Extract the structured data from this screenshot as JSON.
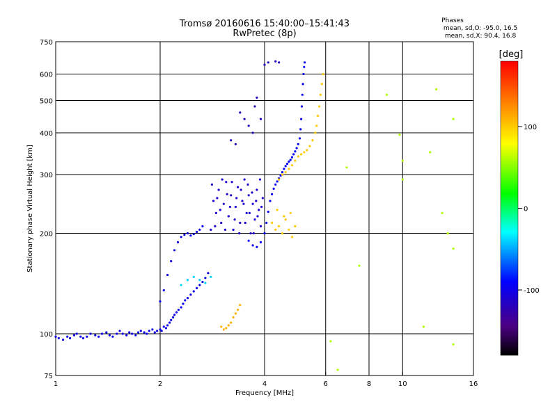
{
  "chart_data": {
    "type": "scatter",
    "title": "Tromsø 20160616 15:40:00–15:41:43",
    "subtitle": "RwPretec (8p)",
    "stats": {
      "heading": "Phases",
      "line_o": "mean, sd,O: -95.0, 16.5",
      "line_x": "mean, sd,X: 90.4, 16.8"
    },
    "xlabel": "Frequency [MHz]",
    "ylabel": "Stationary phase Virtual Height [km]",
    "xscale": "log",
    "yscale": "log",
    "xlim": [
      1,
      16
    ],
    "ylim": [
      75,
      750
    ],
    "x_ticks": [
      1,
      2,
      4,
      8,
      16
    ],
    "x_minor_ticks": [
      6,
      10
    ],
    "y_ticks": [
      75,
      100,
      200,
      300,
      400,
      500,
      600,
      750
    ],
    "grid_x": [
      2,
      4,
      6,
      8,
      10
    ],
    "grid_y": [
      100,
      200,
      300,
      400,
      500,
      600
    ],
    "colorbar": {
      "label": "[deg]",
      "range": [
        -180,
        180
      ],
      "ticks": [
        100,
        0,
        -100
      ]
    },
    "series": [
      {
        "id": "o_bottom",
        "phase": -100,
        "points": [
          [
            1.0,
            98
          ],
          [
            1.02,
            97
          ],
          [
            1.05,
            96
          ],
          [
            1.08,
            98
          ],
          [
            1.1,
            97
          ],
          [
            1.13,
            99
          ],
          [
            1.15,
            100
          ],
          [
            1.18,
            98
          ],
          [
            1.2,
            97
          ],
          [
            1.23,
            98
          ],
          [
            1.26,
            100
          ],
          [
            1.3,
            99
          ],
          [
            1.33,
            98
          ],
          [
            1.36,
            100
          ],
          [
            1.4,
            101
          ],
          [
            1.43,
            99
          ],
          [
            1.46,
            98
          ],
          [
            1.5,
            100
          ],
          [
            1.53,
            102
          ],
          [
            1.56,
            100
          ],
          [
            1.6,
            99
          ],
          [
            1.63,
            101
          ],
          [
            1.66,
            100
          ],
          [
            1.7,
            99
          ],
          [
            1.73,
            101
          ],
          [
            1.76,
            102
          ],
          [
            1.8,
            101
          ],
          [
            1.83,
            100
          ],
          [
            1.86,
            102
          ],
          [
            1.9,
            103
          ],
          [
            1.93,
            101
          ],
          [
            1.96,
            102
          ],
          [
            2.0,
            103
          ],
          [
            2.02,
            102
          ],
          [
            2.05,
            105
          ],
          [
            2.08,
            104
          ],
          [
            2.1,
            106
          ],
          [
            2.13,
            108
          ],
          [
            2.15,
            110
          ],
          [
            2.18,
            112
          ],
          [
            2.2,
            114
          ],
          [
            2.23,
            116
          ],
          [
            2.26,
            118
          ],
          [
            2.3,
            120
          ],
          [
            2.33,
            123
          ],
          [
            2.36,
            126
          ],
          [
            2.4,
            128
          ],
          [
            2.45,
            131
          ],
          [
            2.5,
            134
          ],
          [
            2.55,
            137
          ],
          [
            2.6,
            140
          ],
          [
            2.65,
            143
          ],
          [
            2.7,
            147
          ],
          [
            2.75,
            152
          ]
        ]
      },
      {
        "id": "o_low_branch",
        "phase": -100,
        "points": [
          [
            2.0,
            125
          ],
          [
            2.05,
            135
          ],
          [
            2.1,
            150
          ],
          [
            2.15,
            165
          ],
          [
            2.2,
            178
          ],
          [
            2.25,
            188
          ],
          [
            2.3,
            195
          ],
          [
            2.35,
            198
          ],
          [
            2.4,
            200
          ],
          [
            2.45,
            197
          ],
          [
            2.5,
            199
          ],
          [
            2.55,
            202
          ],
          [
            2.6,
            205
          ],
          [
            2.65,
            210
          ]
        ]
      },
      {
        "id": "o_patch",
        "phase": -110,
        "points": [
          [
            2.8,
            205
          ],
          [
            2.85,
            250
          ],
          [
            2.9,
            230
          ],
          [
            2.95,
            270
          ],
          [
            3.0,
            215
          ],
          [
            3.05,
            245
          ],
          [
            3.1,
            285
          ],
          [
            3.15,
            225
          ],
          [
            3.2,
            260
          ],
          [
            3.25,
            205
          ],
          [
            3.3,
            240
          ],
          [
            3.35,
            275
          ],
          [
            3.4,
            215
          ],
          [
            3.45,
            250
          ],
          [
            3.5,
            290
          ],
          [
            3.55,
            230
          ],
          [
            3.6,
            260
          ],
          [
            3.65,
            200
          ],
          [
            3.7,
            245
          ],
          [
            3.75,
            220
          ],
          [
            3.8,
            270
          ],
          [
            3.85,
            235
          ],
          [
            3.9,
            210
          ],
          [
            3.95,
            255
          ],
          [
            2.82,
            280
          ],
          [
            2.88,
            210
          ],
          [
            2.92,
            255
          ],
          [
            2.98,
            235
          ],
          [
            3.02,
            290
          ],
          [
            3.08,
            205
          ],
          [
            3.12,
            262
          ],
          [
            3.18,
            240
          ],
          [
            3.22,
            285
          ],
          [
            3.28,
            220
          ],
          [
            3.32,
            255
          ],
          [
            3.38,
            200
          ],
          [
            3.42,
            270
          ],
          [
            3.48,
            245
          ],
          [
            3.52,
            215
          ],
          [
            3.58,
            280
          ],
          [
            3.62,
            230
          ],
          [
            3.68,
            265
          ],
          [
            3.72,
            200
          ],
          [
            3.78,
            250
          ],
          [
            3.82,
            225
          ],
          [
            3.88,
            290
          ],
          [
            3.92,
            240
          ]
        ]
      },
      {
        "id": "o_f2",
        "phase": -95,
        "points": [
          [
            3.6,
            190
          ],
          [
            3.7,
            184
          ],
          [
            3.8,
            182
          ],
          [
            3.9,
            188
          ],
          [
            4.0,
            200
          ],
          [
            4.05,
            215
          ],
          [
            4.1,
            232
          ],
          [
            4.15,
            250
          ],
          [
            4.2,
            262
          ],
          [
            4.25,
            272
          ],
          [
            4.3,
            280
          ],
          [
            4.35,
            286
          ],
          [
            4.4,
            292
          ],
          [
            4.45,
            298
          ],
          [
            4.5,
            305
          ],
          [
            4.55,
            312
          ],
          [
            4.6,
            318
          ],
          [
            4.65,
            323
          ],
          [
            4.7,
            328
          ],
          [
            4.75,
            332
          ],
          [
            4.8,
            338
          ],
          [
            4.85,
            345
          ],
          [
            4.9,
            352
          ],
          [
            4.95,
            360
          ],
          [
            5.0,
            370
          ],
          [
            5.05,
            385
          ],
          [
            5.08,
            410
          ],
          [
            5.1,
            440
          ],
          [
            5.12,
            480
          ],
          [
            5.14,
            520
          ],
          [
            5.16,
            560
          ],
          [
            5.18,
            600
          ],
          [
            5.2,
            630
          ],
          [
            5.22,
            650
          ]
        ]
      },
      {
        "id": "o_stray",
        "phase": -120,
        "points": [
          [
            3.4,
            460
          ],
          [
            3.5,
            440
          ],
          [
            3.6,
            420
          ],
          [
            3.7,
            400
          ],
          [
            3.75,
            480
          ],
          [
            3.8,
            510
          ],
          [
            3.9,
            440
          ],
          [
            4.0,
            640
          ],
          [
            4.1,
            650
          ],
          [
            4.3,
            655
          ],
          [
            4.4,
            650
          ],
          [
            3.2,
            380
          ],
          [
            3.3,
            370
          ]
        ]
      },
      {
        "id": "x_high",
        "phase": 100,
        "points": [
          [
            4.4,
            290
          ],
          [
            4.5,
            300
          ],
          [
            4.6,
            305
          ],
          [
            4.7,
            312
          ],
          [
            4.8,
            320
          ],
          [
            4.9,
            330
          ],
          [
            5.0,
            340
          ],
          [
            5.1,
            345
          ],
          [
            5.2,
            350
          ],
          [
            5.3,
            355
          ],
          [
            5.4,
            365
          ],
          [
            5.5,
            380
          ],
          [
            5.6,
            400
          ],
          [
            5.65,
            420
          ],
          [
            5.7,
            450
          ],
          [
            5.75,
            480
          ],
          [
            5.8,
            520
          ],
          [
            5.85,
            560
          ],
          [
            5.9,
            600
          ]
        ]
      },
      {
        "id": "x_patch",
        "phase": 100,
        "points": [
          [
            4.2,
            215
          ],
          [
            4.3,
            205
          ],
          [
            4.4,
            210
          ],
          [
            4.5,
            200
          ],
          [
            4.6,
            220
          ],
          [
            4.7,
            205
          ],
          [
            4.8,
            195
          ],
          [
            4.9,
            210
          ],
          [
            4.35,
            235
          ],
          [
            4.55,
            225
          ],
          [
            4.75,
            230
          ]
        ]
      },
      {
        "id": "x_low",
        "phase": 110,
        "points": [
          [
            3.0,
            105
          ],
          [
            3.05,
            103
          ],
          [
            3.1,
            104
          ],
          [
            3.15,
            106
          ],
          [
            3.2,
            108
          ],
          [
            3.25,
            112
          ],
          [
            3.3,
            115
          ],
          [
            3.35,
            118
          ],
          [
            3.4,
            122
          ]
        ]
      },
      {
        "id": "cyan_low",
        "phase": -40,
        "points": [
          [
            2.3,
            140
          ],
          [
            2.4,
            145
          ],
          [
            2.5,
            148
          ],
          [
            2.6,
            145
          ],
          [
            2.7,
            142
          ],
          [
            2.8,
            148
          ]
        ]
      },
      {
        "id": "stray_points",
        "phase": 60,
        "points": [
          [
            6.2,
            95
          ],
          [
            6.5,
            78
          ],
          [
            6.9,
            315
          ],
          [
            7.5,
            160
          ],
          [
            9.0,
            520
          ],
          [
            9.8,
            395
          ],
          [
            10.0,
            330
          ],
          [
            10.0,
            290
          ],
          [
            11.5,
            105
          ],
          [
            12.0,
            350
          ],
          [
            12.5,
            540
          ],
          [
            13.0,
            230
          ],
          [
            13.5,
            200
          ],
          [
            14.0,
            440
          ],
          [
            14.0,
            180
          ],
          [
            14.0,
            93
          ]
        ]
      }
    ]
  }
}
